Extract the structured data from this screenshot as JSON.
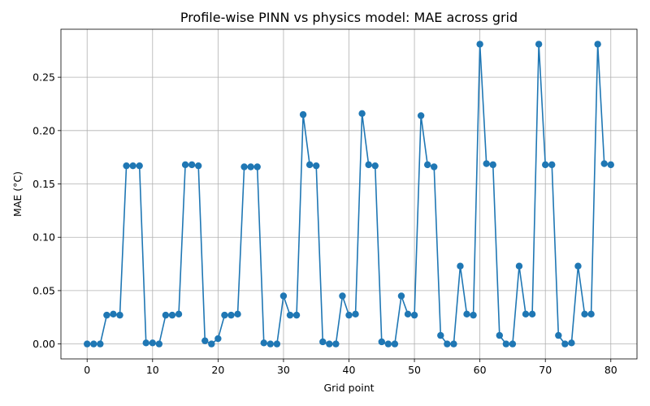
{
  "chart_data": {
    "type": "line",
    "title": "Profile-wise PINN vs physics model: MAE across grid",
    "xlabel": "Grid point",
    "ylabel": "MAE (°C)",
    "xlim": [
      -4,
      84
    ],
    "ylim": [
      -0.014,
      0.295
    ],
    "xticks": [
      0,
      10,
      20,
      30,
      40,
      50,
      60,
      70,
      80
    ],
    "xtick_labels": [
      "0",
      "10",
      "20",
      "30",
      "40",
      "50",
      "60",
      "70",
      "80"
    ],
    "yticks": [
      0.0,
      0.05,
      0.1,
      0.15,
      0.2,
      0.25
    ],
    "ytick_labels": [
      "0.00",
      "0.05",
      "0.10",
      "0.15",
      "0.20",
      "0.25"
    ],
    "grid": true,
    "color": "#1f77b4",
    "marker": "circle",
    "series": [
      {
        "x": [
          0,
          1,
          2,
          3,
          4,
          5,
          6,
          7,
          8,
          9,
          10,
          11,
          12,
          13,
          14,
          15,
          16,
          17,
          18,
          19,
          20,
          21,
          22,
          23,
          24,
          25,
          26,
          27,
          28,
          29,
          30,
          31,
          32,
          33,
          34,
          35,
          36,
          37,
          38,
          39,
          40,
          41,
          42,
          43,
          44,
          45,
          46,
          47,
          48,
          49,
          50,
          51,
          52,
          53,
          54,
          55,
          56,
          57,
          58,
          59,
          60,
          61,
          62,
          63,
          64,
          65,
          66,
          67,
          68,
          69,
          70,
          71,
          72,
          73,
          74,
          75,
          76,
          77,
          78,
          79,
          80
        ],
        "values": [
          0.0,
          0.0,
          0.0,
          0.027,
          0.028,
          0.027,
          0.167,
          0.167,
          0.167,
          0.001,
          0.001,
          0.0,
          0.027,
          0.027,
          0.028,
          0.168,
          0.168,
          0.167,
          0.003,
          0.0,
          0.005,
          0.027,
          0.027,
          0.028,
          0.166,
          0.166,
          0.166,
          0.001,
          0.0,
          0.0,
          0.045,
          0.027,
          0.027,
          0.215,
          0.168,
          0.167,
          0.002,
          0.0,
          0.0,
          0.045,
          0.027,
          0.028,
          0.216,
          0.168,
          0.167,
          0.002,
          0.0,
          0.0,
          0.045,
          0.028,
          0.027,
          0.214,
          0.168,
          0.166,
          0.008,
          0.0,
          0.0,
          0.073,
          0.028,
          0.027,
          0.281,
          0.169,
          0.168,
          0.008,
          0.0,
          0.0,
          0.073,
          0.028,
          0.028,
          0.281,
          0.168,
          0.168,
          0.008,
          0.0,
          0.001,
          0.073,
          0.028,
          0.028,
          0.281,
          0.169,
          0.168
        ]
      }
    ]
  }
}
